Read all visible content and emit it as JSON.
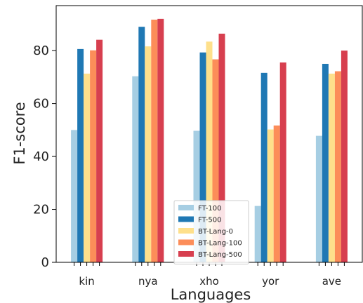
{
  "chart_data": {
    "type": "bar",
    "xlabel": "Languages",
    "ylabel": "F1-score",
    "ylim": [
      0,
      97
    ],
    "yticks": [
      0,
      20,
      40,
      60,
      80
    ],
    "categories": [
      "kin",
      "nya",
      "xho",
      "yor",
      "ave"
    ],
    "series": [
      {
        "name": "FT-100",
        "color": "#a6cee3",
        "values": [
          50.0,
          70.3,
          49.7,
          21.3,
          47.8
        ]
      },
      {
        "name": "FT-500",
        "color": "#1f78b4",
        "values": [
          80.6,
          89.0,
          79.3,
          71.6,
          75.0
        ]
      },
      {
        "name": "BT-Lang-0",
        "color": "#fee08b",
        "values": [
          71.3,
          81.6,
          83.4,
          50.2,
          71.3
        ]
      },
      {
        "name": "BT-Lang-100",
        "color": "#fc8d59",
        "values": [
          80.1,
          91.7,
          76.7,
          51.7,
          72.2
        ]
      },
      {
        "name": "BT-Lang-500",
        "color": "#d73f4f",
        "values": [
          84.1,
          92.0,
          86.4,
          75.5,
          80.0
        ]
      }
    ],
    "legend_position": "lower-center"
  }
}
